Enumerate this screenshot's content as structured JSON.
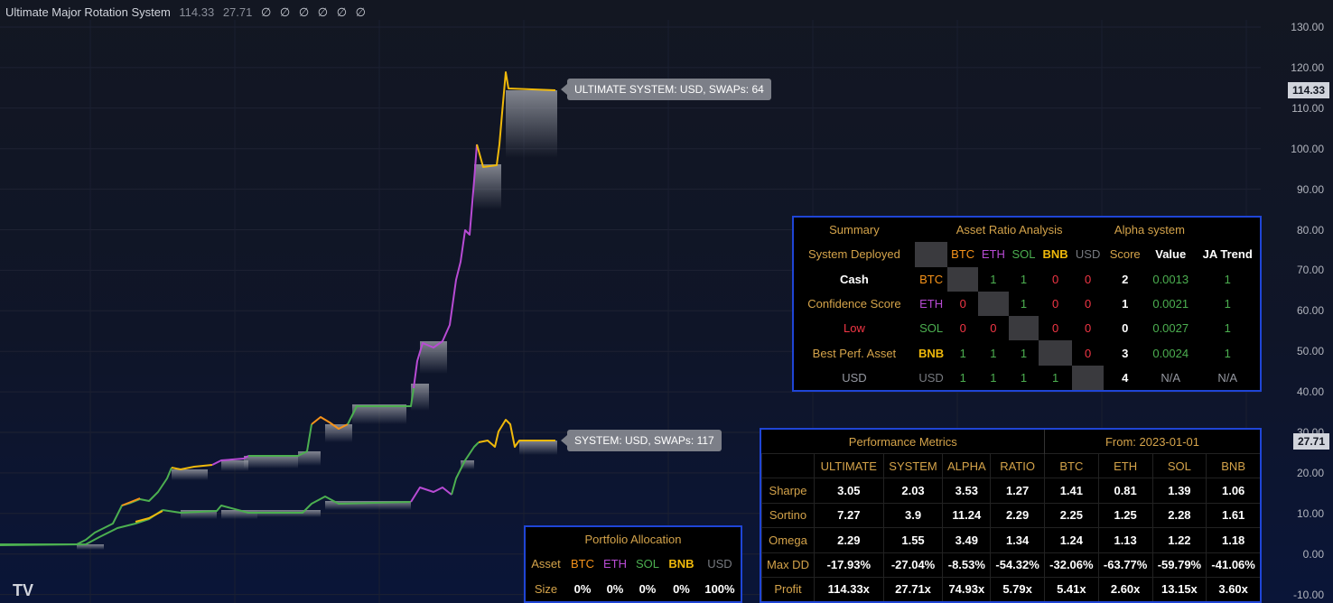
{
  "indicator": {
    "title": "Ultimate Major Rotation System",
    "value1": "114.33",
    "value2": "27.71",
    "placeholders": "∅ ∅ ∅ ∅ ∅ ∅"
  },
  "price_axis": {
    "ticks": [
      "130.00",
      "120.00",
      "110.00",
      "100.00",
      "90.00",
      "80.00",
      "70.00",
      "60.00",
      "50.00",
      "40.00",
      "30.00",
      "20.00",
      "10.00",
      "0.00",
      "-10.00"
    ],
    "tag_ultimate": "114.33",
    "tag_system": "27.71"
  },
  "callouts": {
    "ultimate": "ULTIMATE SYSTEM: USD, SWAPs: 64",
    "system": "SYSTEM: USD, SWAPs: 117"
  },
  "colors": {
    "btc": "#f7931a",
    "eth": "#b84bd4",
    "sol": "#4caf50",
    "bnb": "#f0b90b",
    "usd": "#777a80",
    "panel_border": "#1f45d6"
  },
  "summary": {
    "header_summary": "Summary",
    "header_ratio": "Asset Ratio Analysis",
    "header_alpha": "Alpha system",
    "col_headers": [
      "BTC",
      "ETH",
      "SOL",
      "BNB",
      "USD"
    ],
    "score_header": "Score",
    "value_header": "Value",
    "trend_header": "JA Trend",
    "left_labels": [
      "System Deployed",
      "Cash",
      "Confidence Score",
      "Low",
      "Best Perf. Asset",
      "USD"
    ],
    "rows": [
      {
        "asset": "BTC",
        "cells": [
          "",
          "1",
          "1",
          "0",
          "0"
        ],
        "score": "2",
        "value": "0.0013",
        "trend": "1"
      },
      {
        "asset": "ETH",
        "cells": [
          "0",
          "",
          "1",
          "0",
          "0"
        ],
        "score": "1",
        "value": "0.0021",
        "trend": "1"
      },
      {
        "asset": "SOL",
        "cells": [
          "0",
          "0",
          "",
          "0",
          "0"
        ],
        "score": "0",
        "value": "0.0027",
        "trend": "1"
      },
      {
        "asset": "BNB",
        "cells": [
          "1",
          "1",
          "1",
          "",
          "0"
        ],
        "score": "3",
        "value": "0.0024",
        "trend": "1"
      },
      {
        "asset": "USD",
        "cells": [
          "1",
          "1",
          "1",
          "1",
          ""
        ],
        "score": "4",
        "value": "N/A",
        "trend": "N/A"
      }
    ]
  },
  "performance": {
    "title": "Performance Metrics",
    "from": "From: 2023-01-01",
    "columns": [
      "ULTIMATE",
      "SYSTEM",
      "ALPHA",
      "RATIO",
      "BTC",
      "ETH",
      "SOL",
      "BNB"
    ],
    "rows": [
      {
        "label": "Sharpe",
        "values": [
          "3.05",
          "2.03",
          "3.53",
          "1.27",
          "1.41",
          "0.81",
          "1.39",
          "1.06"
        ]
      },
      {
        "label": "Sortino",
        "values": [
          "7.27",
          "3.9",
          "11.24",
          "2.29",
          "2.25",
          "1.25",
          "2.28",
          "1.61"
        ]
      },
      {
        "label": "Omega",
        "values": [
          "2.29",
          "1.55",
          "3.49",
          "1.34",
          "1.24",
          "1.13",
          "1.22",
          "1.18"
        ]
      },
      {
        "label": "Max DD",
        "values": [
          "-17.93%",
          "-27.04%",
          "-8.53%",
          "-54.32%",
          "-32.06%",
          "-63.77%",
          "-59.79%",
          "-41.06%"
        ]
      },
      {
        "label": "Profit",
        "values": [
          "114.33x",
          "27.71x",
          "74.93x",
          "5.79x",
          "5.41x",
          "2.60x",
          "13.15x",
          "3.60x"
        ]
      }
    ]
  },
  "allocation": {
    "title": "Portfolio Allocation",
    "asset_label": "Asset",
    "size_label": "Size",
    "assets": [
      "BTC",
      "ETH",
      "SOL",
      "BNB",
      "USD"
    ],
    "sizes": [
      "0%",
      "0%",
      "0%",
      "0%",
      "100%"
    ]
  },
  "logo": "TV"
}
